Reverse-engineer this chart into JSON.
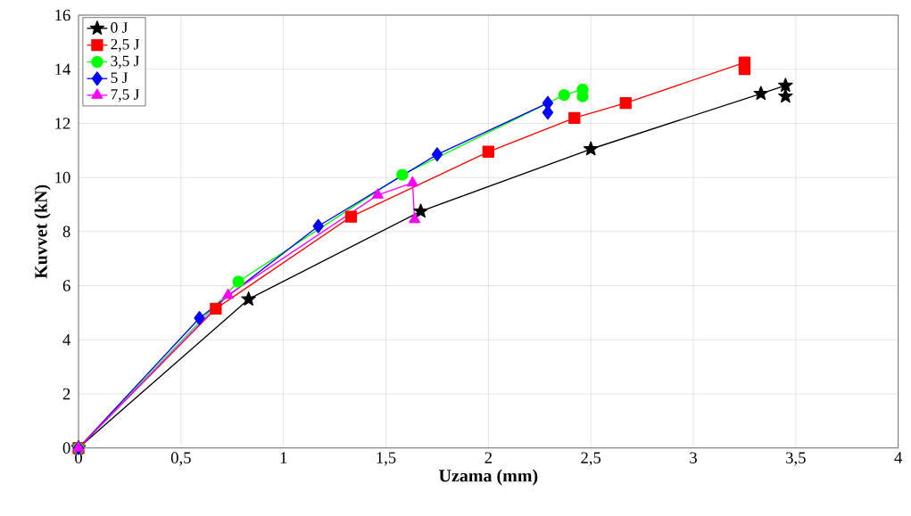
{
  "chart_data": {
    "type": "line",
    "xlabel": "Uzama (mm)",
    "ylabel": "Kuvvet (kN)",
    "xlim": [
      0,
      4
    ],
    "ylim": [
      0,
      16
    ],
    "xticks": [
      0,
      {
        "value": 0.5,
        "label": "0,5"
      },
      1,
      {
        "value": 1.5,
        "label": "1,5"
      },
      2,
      {
        "value": 2.5,
        "label": "2,5"
      },
      3,
      {
        "value": 3.5,
        "label": "3,5"
      },
      4
    ],
    "yticks": [
      0,
      2,
      4,
      6,
      8,
      10,
      12,
      14,
      16
    ],
    "grid": true,
    "legend": "top left",
    "line_style": "solid",
    "series": [
      {
        "name": "0 J",
        "color": "#000000",
        "marker": "star",
        "x": [
          0,
          0.83,
          1.67,
          2.5,
          3.33,
          3.45,
          3.45
        ],
        "values": [
          0,
          5.5,
          8.75,
          11.05,
          13.1,
          13.4,
          13.0
        ]
      },
      {
        "name": "2,5 J",
        "color": "#ff0000",
        "marker": "square",
        "x": [
          0,
          0.67,
          1.33,
          2.0,
          2.42,
          2.67,
          3.25,
          3.25
        ],
        "values": [
          0,
          5.15,
          8.55,
          10.95,
          12.2,
          12.75,
          14.25,
          14.0
        ]
      },
      {
        "name": "3,5 J",
        "color": "#00ff00",
        "marker": "circle",
        "x": [
          0,
          0.78,
          1.58,
          2.37,
          2.46,
          2.46
        ],
        "values": [
          0,
          6.15,
          10.1,
          13.05,
          13.25,
          13.0
        ]
      },
      {
        "name": "5 J",
        "color": "#0000ff",
        "marker": "diamond",
        "x": [
          0,
          0.59,
          1.17,
          1.75,
          2.29,
          2.29
        ],
        "values": [
          0,
          4.8,
          8.2,
          10.85,
          12.75,
          12.4
        ]
      },
      {
        "name": "7,5 J",
        "color": "#ff00ff",
        "marker": "triangle",
        "x": [
          0,
          0.73,
          1.46,
          1.63,
          1.64
        ],
        "values": [
          0,
          5.65,
          9.35,
          9.8,
          8.45
        ]
      }
    ]
  }
}
